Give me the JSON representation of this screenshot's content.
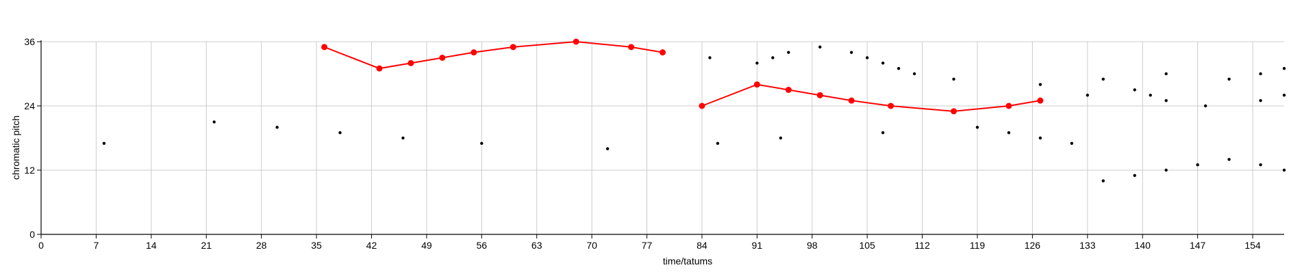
{
  "chart_data": {
    "type": "scatter",
    "title": "",
    "xlabel": "time/tatums",
    "ylabel": "chromatic pitch",
    "xlim": [
      0,
      158
    ],
    "ylim": [
      0,
      36
    ],
    "xticks": [
      0,
      7,
      14,
      21,
      28,
      35,
      42,
      49,
      56,
      63,
      70,
      77,
      84,
      91,
      98,
      105,
      112,
      119,
      126,
      133,
      140,
      147,
      154
    ],
    "yticks": [
      0,
      12,
      24,
      36
    ],
    "grid": true,
    "colors": {
      "line": "#ff0000",
      "dot": "#000000",
      "grid": "#cccccc",
      "axis": "#000000"
    },
    "series": [
      {
        "kind": "line",
        "points": [
          [
            36,
            35
          ],
          [
            43,
            31
          ],
          [
            47,
            32
          ],
          [
            51,
            33
          ],
          [
            55,
            34
          ],
          [
            60,
            35
          ],
          [
            68,
            36
          ],
          [
            75,
            35
          ],
          [
            79,
            34
          ]
        ]
      },
      {
        "kind": "line",
        "points": [
          [
            84,
            24
          ],
          [
            91,
            28
          ],
          [
            95,
            27
          ],
          [
            99,
            26
          ],
          [
            103,
            25
          ],
          [
            108,
            24
          ],
          [
            116,
            23
          ],
          [
            123,
            24
          ],
          [
            127,
            25
          ]
        ]
      },
      {
        "kind": "scatter",
        "points": [
          [
            8,
            17
          ],
          [
            22,
            21
          ],
          [
            30,
            20
          ],
          [
            38,
            19
          ],
          [
            46,
            18
          ],
          [
            56,
            17
          ],
          [
            72,
            16
          ],
          [
            85,
            33
          ],
          [
            86,
            17
          ],
          [
            91,
            32
          ],
          [
            93,
            33
          ],
          [
            94,
            18
          ],
          [
            95,
            34
          ],
          [
            99,
            35
          ],
          [
            103,
            34
          ],
          [
            105,
            33
          ],
          [
            107,
            32
          ],
          [
            107,
            19
          ],
          [
            109,
            31
          ],
          [
            111,
            30
          ],
          [
            116,
            29
          ],
          [
            119,
            20
          ],
          [
            123,
            19
          ],
          [
            127,
            28
          ],
          [
            127,
            18
          ],
          [
            131,
            17
          ],
          [
            133,
            26
          ],
          [
            135,
            29
          ],
          [
            135,
            10
          ],
          [
            139,
            27
          ],
          [
            139,
            11
          ],
          [
            141,
            26
          ],
          [
            143,
            30
          ],
          [
            143,
            25
          ],
          [
            143,
            12
          ],
          [
            147,
            13
          ],
          [
            148,
            24
          ],
          [
            151,
            29
          ],
          [
            151,
            14
          ],
          [
            155,
            30
          ],
          [
            155,
            25
          ],
          [
            155,
            13
          ],
          [
            158,
            31
          ],
          [
            158,
            26
          ],
          [
            158,
            12
          ]
        ]
      }
    ]
  }
}
